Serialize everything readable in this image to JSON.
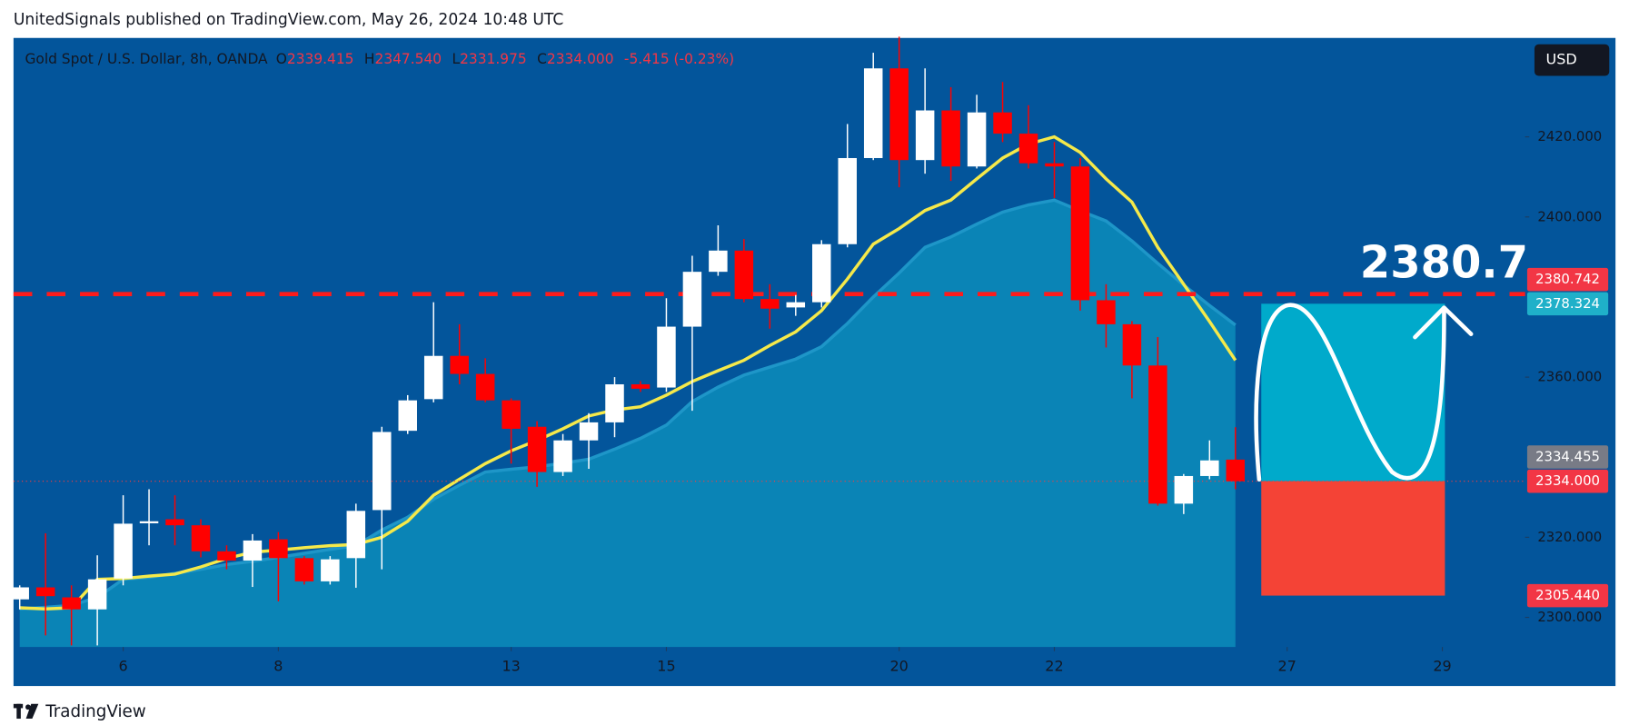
{
  "header": {
    "attribution": "UnitedSignals published on TradingView.com, May 26, 2024 10:48 UTC",
    "footer": "TradingView"
  },
  "chart_data": {
    "type": "candlestick",
    "symbol": "Gold Spot / U.S. Dollar, 8h, OANDA",
    "ohlc_legend": [
      {
        "key": "O",
        "value": "2339.415"
      },
      {
        "key": "H",
        "value": "2347.540"
      },
      {
        "key": "L",
        "value": "2331.975"
      },
      {
        "key": "C",
        "value": "2334.000"
      }
    ],
    "change": "-5.415 (-0.23%)",
    "currency": "USD",
    "up_color": "#ffffff",
    "down_color": "#ff0000",
    "x": [
      0,
      1,
      2,
      3,
      4,
      5,
      6,
      7,
      8,
      9,
      10,
      11,
      12,
      13,
      14,
      15,
      16,
      17,
      18,
      19,
      20,
      21,
      22,
      23,
      24,
      25,
      26,
      27,
      28,
      29,
      30,
      31,
      32,
      33,
      34,
      35,
      36,
      37,
      38,
      39,
      40,
      41,
      42,
      43,
      44,
      45,
      46,
      47
    ],
    "open": [
      2304.5,
      2307.5,
      2305,
      2302,
      2309.7,
      2323.5,
      2324.5,
      2323,
      2316.5,
      2314.2,
      2319.5,
      2314.8,
      2309,
      2314.8,
      2326.8,
      2346.6,
      2354.5,
      2365.3,
      2360.8,
      2354.2,
      2347.6,
      2336.3,
      2344.2,
      2348.7,
      2358.2,
      2357.4,
      2372.6,
      2386.3,
      2391.6,
      2379.5,
      2377.4,
      2378.7,
      2393.2,
      2414.7,
      2437.1,
      2414.2,
      2426.6,
      2412.6,
      2426.1,
      2420.8,
      2413.4,
      2412.6,
      2379.2,
      2373.2,
      2362.9,
      2328.4,
      2335.3,
      2339.4
    ],
    "high": [
      2308,
      2321,
      2308,
      2315.5,
      2330.5,
      2332,
      2330.5,
      2324.5,
      2318,
      2320.8,
      2321.3,
      2315.3,
      2315.3,
      2328.4,
      2347.6,
      2355.5,
      2378.7,
      2373.2,
      2364.7,
      2354.7,
      2349,
      2345.8,
      2351,
      2360,
      2359,
      2379.7,
      2390.3,
      2397.9,
      2394.5,
      2383.2,
      2380.5,
      2394.2,
      2423.2,
      2441,
      2445,
      2437.1,
      2432.4,
      2430.5,
      2433.7,
      2427.9,
      2418.7,
      2414.7,
      2383.2,
      2374,
      2370,
      2335.8,
      2344.2,
      2347.5
    ],
    "low": [
      2302,
      2295.5,
      2293,
      2293,
      2308,
      2318,
      2318,
      2315,
      2312,
      2307.6,
      2304,
      2308.2,
      2308.2,
      2307.4,
      2312,
      2345.8,
      2353.7,
      2358.2,
      2353.7,
      2338.4,
      2332.6,
      2335.3,
      2337.1,
      2345,
      2356.3,
      2356.3,
      2351.6,
      2385.3,
      2378.7,
      2372.1,
      2375.3,
      2377.4,
      2392.4,
      2414.2,
      2407.4,
      2410.8,
      2409,
      2412.1,
      2418.7,
      2412.1,
      2404.7,
      2376.6,
      2367.4,
      2354.7,
      2327.9,
      2325.8,
      2334.5,
      2332
    ],
    "close": [
      2307.5,
      2305.3,
      2302,
      2309.5,
      2323.4,
      2324,
      2323,
      2316.5,
      2314.2,
      2319.2,
      2314.8,
      2309,
      2314.5,
      2326.6,
      2346.3,
      2354.2,
      2365.3,
      2360.8,
      2354.2,
      2347.1,
      2336.3,
      2344.2,
      2348.7,
      2358.2,
      2357.1,
      2372.6,
      2386.3,
      2391.6,
      2379.5,
      2377.1,
      2378.7,
      2393.2,
      2414.7,
      2437.1,
      2414.2,
      2426.6,
      2412.6,
      2426.1,
      2420.8,
      2413.4,
      2412.6,
      2379.2,
      2373.2,
      2362.9,
      2328.4,
      2335.3,
      2339.2,
      2334
    ],
    "overlays": [
      {
        "kind": "area",
        "color": "#1e96c8",
        "fill": "#0a84b6",
        "values": [
          2302.1,
          2302.5,
          2303,
          2305,
          2309.5,
          2310,
          2311,
          2312,
          2313.2,
          2314,
          2315,
          2316,
          2317,
          2317.9,
          2321.8,
          2325,
          2329.5,
          2333,
          2336.3,
          2337,
          2337.6,
          2338.5,
          2339.5,
          2342,
          2344.7,
          2348,
          2353.9,
          2357.5,
          2360.5,
          2362.5,
          2364.5,
          2367.6,
          2373.4,
          2380,
          2386,
          2392.4,
          2395,
          2398.2,
          2401.2,
          2403,
          2404.2,
          2401.5,
          2399,
          2394,
          2388.4,
          2383,
          2377.9,
          2373
        ]
      },
      {
        "kind": "line",
        "color": "#f5e94a",
        "values": [
          2302.4,
          2302.1,
          2302.4,
          2309.5,
          2309.7,
          2310.3,
          2310.8,
          2312.6,
          2314.7,
          2316.3,
          2316.8,
          2317.4,
          2317.9,
          2318.2,
          2320,
          2324,
          2330.5,
          2334.5,
          2338.4,
          2341.6,
          2344.2,
          2347.1,
          2350.3,
          2351.8,
          2352.6,
          2355.5,
          2358.9,
          2361.6,
          2364.2,
          2367.9,
          2371.3,
          2376.6,
          2384.5,
          2393.2,
          2397.1,
          2401.6,
          2404.2,
          2409.5,
          2414.7,
          2418.2,
          2420,
          2416.1,
          2409.5,
          2403.7,
          2392.4,
          2383.2,
          2373.9,
          2364.2
        ]
      }
    ],
    "xlim": [
      -0.24,
      58.2
    ],
    "xticks": [
      {
        "value": 4,
        "label": "6"
      },
      {
        "value": 10,
        "label": "8"
      },
      {
        "value": 19,
        "label": "13"
      },
      {
        "value": 25,
        "label": "15"
      },
      {
        "value": 34,
        "label": "20"
      },
      {
        "value": 40,
        "label": "22"
      },
      {
        "value": 49,
        "label": "27"
      },
      {
        "value": 55,
        "label": "29"
      }
    ],
    "ylim": [
      2292.6,
      2444.7
    ],
    "yticks": [
      {
        "value": 2300,
        "label": "2300.000"
      },
      {
        "value": 2320,
        "label": "2320.000"
      },
      {
        "value": 2360,
        "label": "2360.000"
      },
      {
        "value": 2400,
        "label": "2400.000"
      },
      {
        "value": 2420,
        "label": "2420.000"
      }
    ],
    "price_lines": [
      {
        "value": 2380.742,
        "color": "#ff1b1b",
        "dashed": true
      },
      {
        "value": 2334,
        "color": "#ff3b3b",
        "dashed": false
      }
    ],
    "price_labels": [
      {
        "value": 2380.742,
        "color": "#f23645"
      },
      {
        "value": 2378.324,
        "color": "#1fb0c9"
      },
      {
        "value": 2334.455,
        "color": "#787b86"
      },
      {
        "value": {
          "value": 2334,
          "label": "2334.000"
        },
        "color": "#f23645"
      },
      {
        "value": {
          "value": 2305.44,
          "label": "2305.440"
        },
        "color": "#f23645"
      }
    ],
    "position": {
      "x": [
        48,
        55.1
      ],
      "target": 2378.324,
      "entry": 2334,
      "stop": 2305.44,
      "profit_color": "#00aacb",
      "loss_color": "#f44336"
    },
    "annotation": "2380.7"
  }
}
